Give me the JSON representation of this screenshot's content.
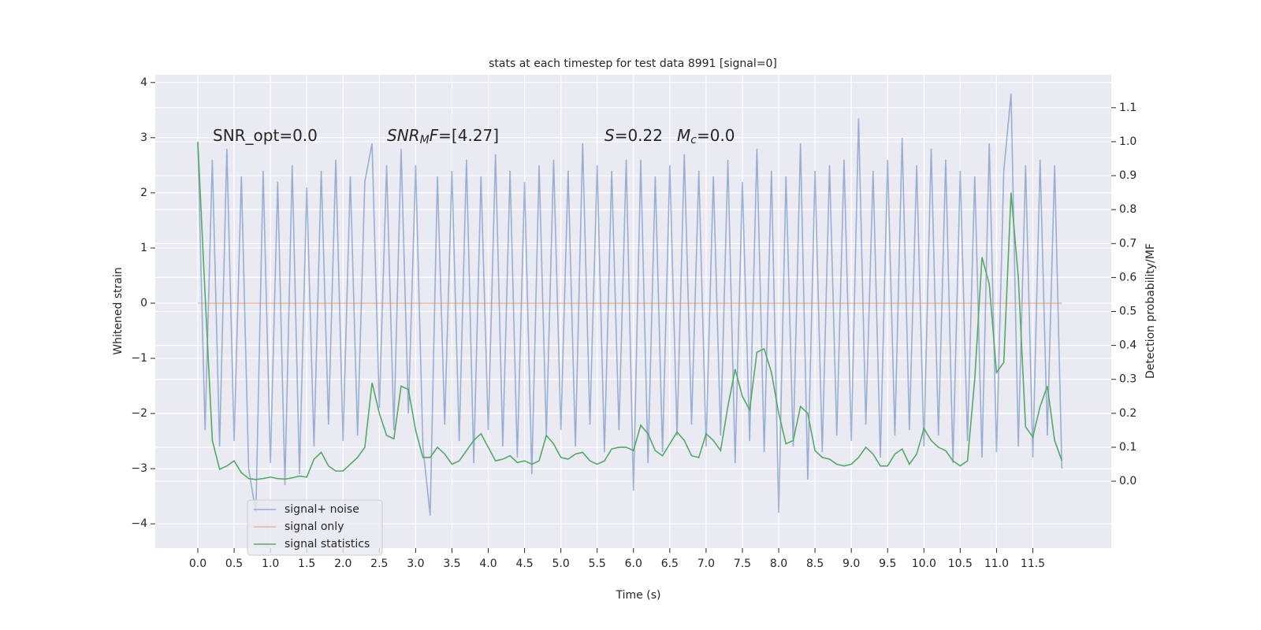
{
  "chart_data": {
    "type": "line",
    "title": "stats at each timestep for test data 8991 [signal=0]",
    "xlabel": "Time (s)",
    "ylabel": "Whitened strain",
    "y2label": "Detection probability/MF",
    "grid": true,
    "legend": "lower left",
    "annotations": [
      {
        "parts": [
          {
            "text": "SNR_opt=0.0"
          }
        ]
      },
      {
        "parts": [
          {
            "text": "SNR",
            "italic": true
          },
          {
            "text": "M",
            "italic": true,
            "sub": true
          },
          {
            "text": "F",
            "italic": true
          },
          {
            "text": "=[4.27]"
          }
        ]
      },
      {
        "parts": [
          {
            "text": "S",
            "italic": true
          },
          {
            "text": "=0.22"
          }
        ]
      },
      {
        "parts": [
          {
            "text": "M",
            "italic": true
          },
          {
            "text": "c",
            "italic": true,
            "sub": true
          },
          {
            "text": "=0.0"
          }
        ]
      }
    ],
    "x": [
      0,
      0.1,
      0.2,
      0.3,
      0.4,
      0.5,
      0.6,
      0.7,
      0.8,
      0.9,
      1,
      1.1,
      1.2,
      1.3,
      1.4,
      1.5,
      1.6,
      1.7,
      1.8,
      1.9,
      2,
      2.1,
      2.2,
      2.3,
      2.4,
      2.5,
      2.6,
      2.7,
      2.8,
      2.9,
      3,
      3.1,
      3.2,
      3.3,
      3.4,
      3.5,
      3.6,
      3.7,
      3.8,
      3.9,
      4,
      4.1,
      4.2,
      4.3,
      4.4,
      4.5,
      4.6,
      4.7,
      4.8,
      4.9,
      5,
      5.1,
      5.2,
      5.3,
      5.4,
      5.5,
      5.6,
      5.7,
      5.8,
      5.9,
      6,
      6.1,
      6.2,
      6.3,
      6.4,
      6.5,
      6.6,
      6.7,
      6.8,
      6.9,
      7,
      7.1,
      7.2,
      7.3,
      7.4,
      7.5,
      7.6,
      7.7,
      7.8,
      7.9,
      8,
      8.1,
      8.2,
      8.3,
      8.4,
      8.5,
      8.6,
      8.7,
      8.8,
      8.9,
      9,
      9.1,
      9.2,
      9.3,
      9.4,
      9.5,
      9.6,
      9.7,
      9.8,
      9.9,
      10,
      10.1,
      10.2,
      10.3,
      10.4,
      10.5,
      10.6,
      10.7,
      10.8,
      10.9,
      11,
      11.1,
      11.2,
      11.3,
      11.4,
      11.5,
      11.6,
      11.7,
      11.8,
      11.9
    ],
    "series": [
      {
        "name": "signal+ noise",
        "color": "#4c72b0",
        "opacity": 0.5,
        "values": [
          2.9,
          -2.3,
          2.6,
          -2.6,
          2.8,
          -2.5,
          2.3,
          -3.0,
          -3.8,
          2.4,
          -2.9,
          2.2,
          -3.3,
          2.5,
          -3.1,
          2.1,
          -2.6,
          2.4,
          -2.2,
          2.6,
          -2.5,
          2.3,
          -2.4,
          2.2,
          2.9,
          -1.9,
          2.5,
          -2.3,
          2.8,
          -2.0,
          2.5,
          -2.6,
          -3.85,
          2.3,
          -2.2,
          2.4,
          -2.5,
          2.6,
          -2.9,
          2.3,
          -2.3,
          2.7,
          -2.6,
          2.4,
          -2.8,
          2.2,
          -3.1,
          2.5,
          -2.4,
          2.6,
          -2.3,
          2.4,
          -2.6,
          2.9,
          -2.2,
          2.5,
          -2.7,
          2.4,
          -2.3,
          2.6,
          -3.4,
          2.6,
          -2.9,
          2.3,
          -2.7,
          2.5,
          -2.4,
          2.7,
          -2.2,
          2.4,
          -2.6,
          2.3,
          -2.4,
          2.6,
          -2.9,
          2.2,
          -2.5,
          2.8,
          -2.7,
          2.4,
          -3.8,
          2.3,
          -2.6,
          2.9,
          -3.2,
          2.4,
          -2.7,
          2.5,
          -2.4,
          2.6,
          -2.5,
          3.35,
          -2.2,
          2.4,
          -2.8,
          2.6,
          -2.4,
          3.0,
          -2.3,
          2.5,
          -2.6,
          2.8,
          -2.4,
          2.6,
          -2.9,
          2.4,
          -2.5,
          2.3,
          -2.8,
          2.9,
          -2.7,
          2.4,
          3.8,
          -2.6,
          2.5,
          -2.8,
          2.6,
          -2.4,
          2.5,
          -3.0
        ]
      },
      {
        "name": "signal only",
        "color": "#dd8452",
        "opacity": 0.5,
        "values": [
          0,
          0,
          0,
          0,
          0,
          0,
          0,
          0,
          0,
          0,
          0,
          0,
          0,
          0,
          0,
          0,
          0,
          0,
          0,
          0,
          0,
          0,
          0,
          0,
          0,
          0,
          0,
          0,
          0,
          0,
          0,
          0,
          0,
          0,
          0,
          0,
          0,
          0,
          0,
          0,
          0,
          0,
          0,
          0,
          0,
          0,
          0,
          0,
          0,
          0,
          0,
          0,
          0,
          0,
          0,
          0,
          0,
          0,
          0,
          0,
          0,
          0,
          0,
          0,
          0,
          0,
          0,
          0,
          0,
          0,
          0,
          0,
          0,
          0,
          0,
          0,
          0,
          0,
          0,
          0,
          0,
          0,
          0,
          0,
          0,
          0,
          0,
          0,
          0,
          0,
          0,
          0,
          0,
          0,
          0,
          0,
          0,
          0,
          0,
          0,
          0,
          0,
          0,
          0,
          0,
          0,
          0,
          0,
          0,
          0,
          0,
          0,
          0,
          0,
          0,
          0,
          0,
          0,
          0,
          0
        ]
      },
      {
        "name": "signal statistics",
        "color": "#55a868",
        "opacity": 1,
        "axis": "y2",
        "values": [
          1.0,
          0.55,
          0.12,
          0.035,
          0.045,
          0.06,
          0.025,
          0.008,
          0.005,
          0.008,
          0.012,
          0.008,
          0.006,
          0.01,
          0.015,
          0.012,
          0.065,
          0.085,
          0.045,
          0.03,
          0.03,
          0.05,
          0.07,
          0.1,
          0.29,
          0.2,
          0.135,
          0.125,
          0.28,
          0.27,
          0.15,
          0.07,
          0.07,
          0.1,
          0.08,
          0.05,
          0.06,
          0.09,
          0.12,
          0.14,
          0.1,
          0.06,
          0.065,
          0.075,
          0.055,
          0.06,
          0.05,
          0.06,
          0.135,
          0.11,
          0.07,
          0.065,
          0.08,
          0.085,
          0.06,
          0.05,
          0.06,
          0.095,
          0.1,
          0.1,
          0.09,
          0.165,
          0.14,
          0.09,
          0.075,
          0.11,
          0.145,
          0.12,
          0.075,
          0.07,
          0.14,
          0.12,
          0.09,
          0.22,
          0.33,
          0.25,
          0.21,
          0.38,
          0.39,
          0.32,
          0.2,
          0.11,
          0.12,
          0.22,
          0.2,
          0.09,
          0.07,
          0.065,
          0.05,
          0.045,
          0.05,
          0.07,
          0.1,
          0.08,
          0.045,
          0.045,
          0.08,
          0.095,
          0.05,
          0.08,
          0.155,
          0.12,
          0.1,
          0.09,
          0.06,
          0.045,
          0.06,
          0.3,
          0.66,
          0.58,
          0.32,
          0.35,
          0.85,
          0.6,
          0.16,
          0.13,
          0.22,
          0.28,
          0.12,
          0.06
        ]
      }
    ],
    "xlim": [
      -0.586,
      12.58
    ],
    "xticks": [
      {
        "value": 0,
        "label": "0.0"
      },
      0.5,
      {
        "value": 1,
        "label": "1.0"
      },
      1.5,
      {
        "value": 2,
        "label": "2.0"
      },
      2.5,
      {
        "value": 3,
        "label": "3.0"
      },
      3.5,
      {
        "value": 4,
        "label": "4.0"
      },
      4.5,
      {
        "value": 5,
        "label": "5.0"
      },
      5.5,
      {
        "value": 6,
        "label": "6.0"
      },
      6.5,
      {
        "value": 7,
        "label": "7.0"
      },
      7.5,
      {
        "value": 8,
        "label": "8.0"
      },
      8.5,
      {
        "value": 9,
        "label": "9.0"
      },
      9.5,
      {
        "value": 10,
        "label": "10.0"
      },
      10.5,
      {
        "value": 11,
        "label": "11.0"
      },
      11.5
    ],
    "ylim": [
      -4.44,
      4.14
    ],
    "yticks": [
      {
        "value": -4,
        "label": "−4"
      },
      {
        "value": -3,
        "label": "−3"
      },
      {
        "value": -2,
        "label": "−2"
      },
      {
        "value": -1,
        "label": "−1"
      },
      0,
      1,
      2,
      3,
      4
    ],
    "y2lim": [
      -0.197,
      1.197
    ],
    "y2ticks": [
      {
        "value": 0,
        "label": "0.0"
      },
      0.1,
      0.2,
      0.3,
      0.4,
      0.5,
      0.6,
      0.7,
      0.8,
      0.9,
      {
        "value": 1,
        "label": "1.0"
      },
      1.1
    ]
  }
}
